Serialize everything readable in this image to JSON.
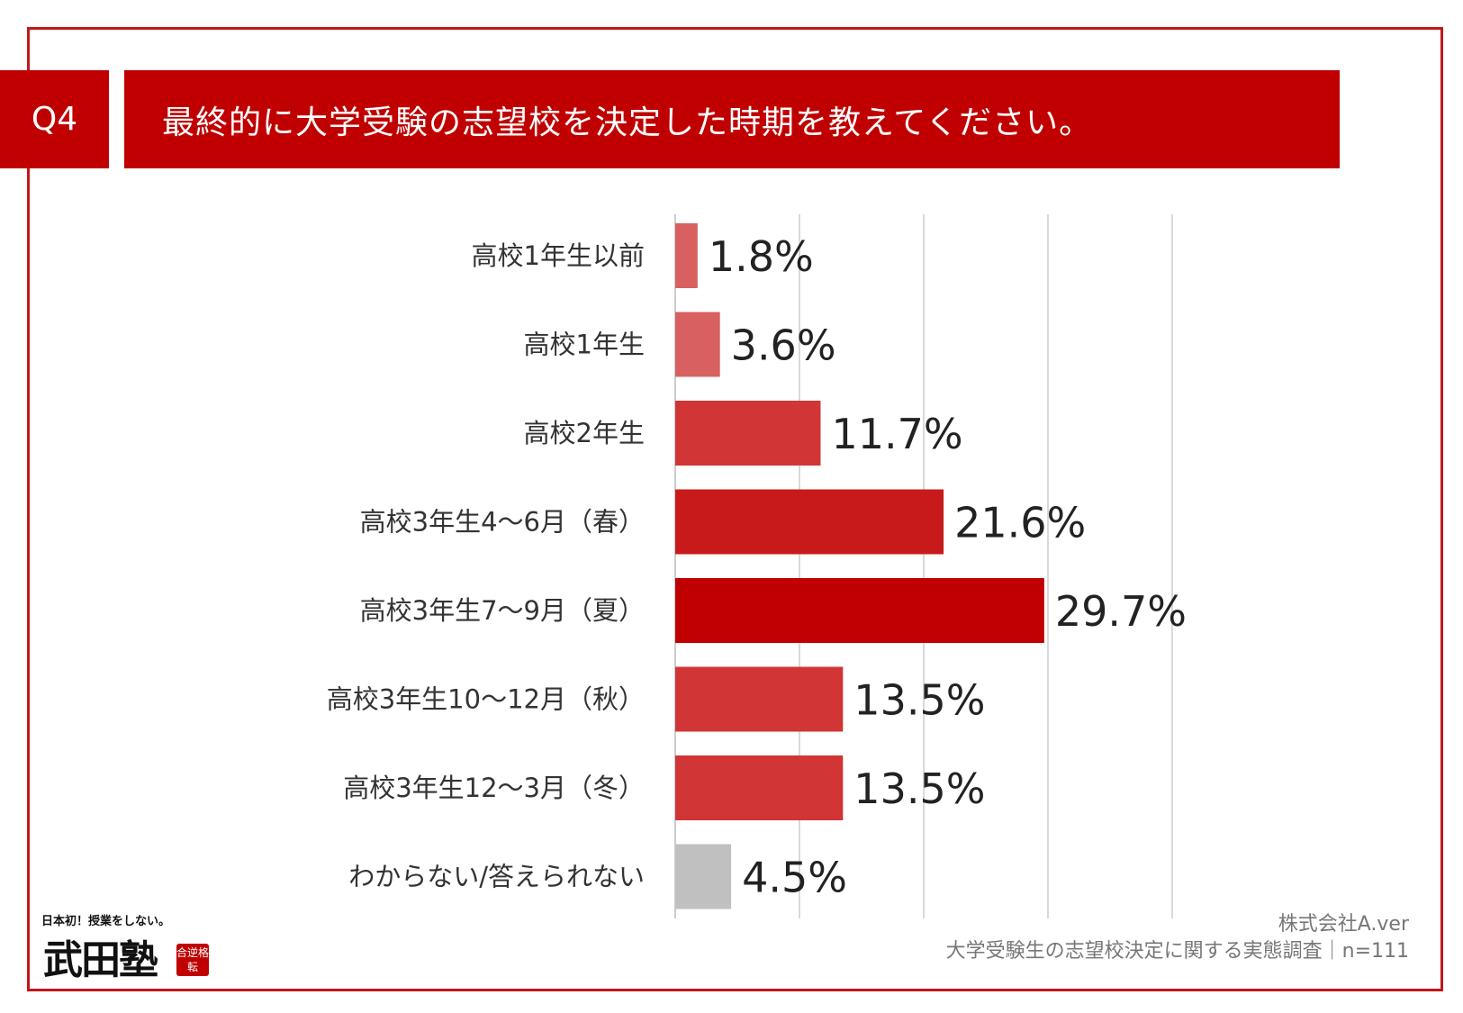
{
  "header": {
    "badge": "Q4",
    "title": "最終的に大学受験の志望校を決定した時期を教えてください。"
  },
  "colors": {
    "frame": "#c1161c",
    "header_bg": "#c00000",
    "bar_light": "#d96060",
    "bar_mid": "#d13535",
    "bar_strong": "#c81a1a",
    "bar_max": "#c00000",
    "bar_gray": "#c0c0c0",
    "grid": "#d9d9d9"
  },
  "chart_data": {
    "type": "bar",
    "orientation": "horizontal",
    "title": "最終的に大学受験の志望校を決定した時期を教えてください。",
    "categories": [
      "高校1年生以前",
      "高校1年生",
      "高校2年生",
      "高校3年生4〜6月（春）",
      "高校3年生7〜9月（夏）",
      "高校3年生10〜12月（秋）",
      "高校3年生12〜3月（冬）",
      "わからない/答えられない"
    ],
    "values": [
      1.8,
      3.6,
      11.7,
      21.6,
      29.7,
      13.5,
      13.5,
      4.5
    ],
    "labels": [
      "1.8%",
      "3.6%",
      "11.7%",
      "21.6%",
      "29.7%",
      "13.5%",
      "13.5%",
      "4.5%"
    ],
    "bar_colors": [
      "#d96060",
      "#d96060",
      "#d13535",
      "#c81a1a",
      "#c00000",
      "#d13535",
      "#d13535",
      "#c0c0c0"
    ],
    "xlim": [
      0,
      40
    ],
    "grid_every": 10,
    "grid": true,
    "xlabel": "",
    "ylabel": ""
  },
  "footer": {
    "company": "株式会社A.ver",
    "source": "大学受験生の志望校決定に関する実態調査｜n=111"
  },
  "logo": {
    "tagline": "日本初！授業をしない。",
    "mark": "武田塾",
    "stamp": "合逆格転"
  }
}
